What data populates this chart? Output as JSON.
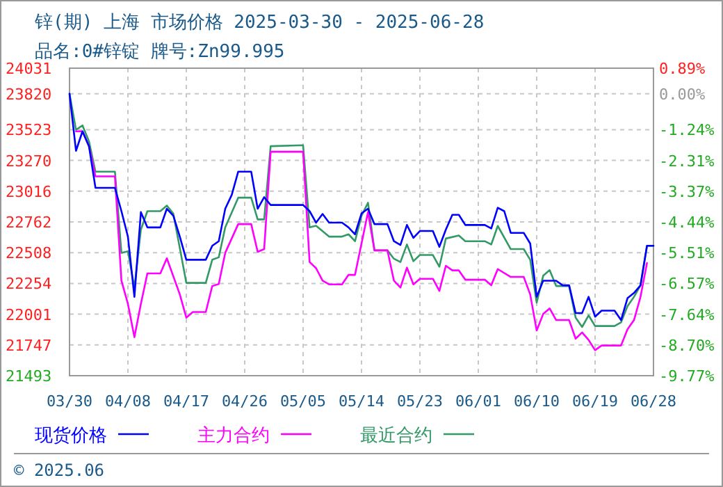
{
  "chart_data": {
    "type": "line",
    "title": "锌(期) 上海 市场价格 2025-03-30 - 2025-06-28",
    "subtitle": "品名:0#锌锭 牌号:Zn99.995",
    "annotations": [
      "© 2025.06"
    ],
    "legend": "bottom",
    "grid": true,
    "marker": "none",
    "line_style": "solid",
    "xlim": [
      "--03-30",
      "--06-28"
    ],
    "xticks": [
      {
        "value": "--03-30",
        "label": "03/30"
      },
      {
        "value": "--04-08",
        "label": "04/08"
      },
      {
        "value": "--04-17",
        "label": "04/17"
      },
      {
        "value": "--04-26",
        "label": "04/26"
      },
      {
        "value": "--05-05",
        "label": "05/05"
      },
      {
        "value": "--05-14",
        "label": "05/14"
      },
      {
        "value": "--05-23",
        "label": "05/23"
      },
      {
        "value": "--06-01",
        "label": "06/01"
      },
      {
        "value": "--06-10",
        "label": "06/10"
      },
      {
        "value": "--06-19",
        "label": "06/19"
      },
      {
        "value": "--06-28",
        "label": "06/28"
      }
    ],
    "ylim": [
      21493,
      24031
    ],
    "yticks": [
      24031,
      23820,
      23523,
      23270,
      23016,
      22762,
      22508,
      22254,
      22001,
      21747,
      21493
    ],
    "y2lim": [
      -9.77,
      0.89
    ],
    "y2ticks": [
      {
        "value": 0.89,
        "label": "0.89%"
      },
      {
        "value": 0,
        "label": "0.00%"
      },
      {
        "value": -1.24,
        "label": "-1.24%"
      },
      {
        "value": -2.31,
        "label": "-2.31%"
      },
      {
        "value": -3.37,
        "label": "-3.37%"
      },
      {
        "value": -4.44,
        "label": "-4.44%"
      },
      {
        "value": -5.51,
        "label": "-5.51%"
      },
      {
        "value": -6.57,
        "label": "-6.57%"
      },
      {
        "value": -7.64,
        "label": "-7.64%"
      },
      {
        "value": -8.7,
        "label": "-8.70%"
      },
      {
        "value": -9.77,
        "label": "-9.77%"
      }
    ],
    "series": [
      {
        "name": "现货价格",
        "color": "#0000ff",
        "x": [
          "--03-30",
          "--03-31",
          "--04-01",
          "--04-02",
          "--04-03",
          "--04-06",
          "--04-07",
          "--04-08",
          "--04-09",
          "--04-10",
          "--04-11",
          "--04-13",
          "--04-14",
          "--04-15",
          "--04-16",
          "--04-17",
          "--04-20",
          "--04-21",
          "--04-22",
          "--04-23",
          "--04-24",
          "--04-25",
          "--04-27",
          "--04-28",
          "--04-29",
          "--04-30",
          "--05-05",
          "--05-06",
          "--05-07",
          "--05-08",
          "--05-09",
          "--05-11",
          "--05-12",
          "--05-13",
          "--05-14",
          "--05-15",
          "--05-16",
          "--05-18",
          "--05-19",
          "--05-20",
          "--05-21",
          "--05-22",
          "--05-23",
          "--05-25",
          "--05-26",
          "--05-27",
          "--05-28",
          "--05-29",
          "--05-30",
          "--06-02",
          "--06-03",
          "--06-04",
          "--06-05",
          "--06-06",
          "--06-08",
          "--06-09",
          "--06-10",
          "--06-11",
          "--06-13",
          "--06-14",
          "--06-15",
          "--06-16",
          "--06-17",
          "--06-18",
          "--06-19",
          "--06-20",
          "--06-22",
          "--06-23",
          "--06-24",
          "--06-25",
          "--06-26",
          "--06-27",
          "--06-28"
        ],
        "values": [
          23820,
          23349,
          23510,
          23387,
          23043,
          23043,
          22851,
          22641,
          22144,
          22843,
          22717,
          22717,
          22871,
          22813,
          22641,
          22450,
          22450,
          22565,
          22603,
          22871,
          22985,
          23177,
          23177,
          22871,
          22966,
          22902,
          22902,
          22851,
          22756,
          22828,
          22756,
          22756,
          22717,
          22660,
          22832,
          22871,
          22744,
          22744,
          22603,
          22572,
          22737,
          22630,
          22687,
          22687,
          22557,
          22699,
          22821,
          22821,
          22737,
          22737,
          22708,
          22879,
          22851,
          22672,
          22672,
          22584,
          22144,
          22277,
          22277,
          22239,
          22239,
          22010,
          22010,
          22144,
          21980,
          22030,
          22030,
          21952,
          22133,
          22176,
          22239,
          22565,
          22565
        ]
      },
      {
        "name": "主力合约",
        "color": "#ff00ff",
        "x": [
          "--03-31",
          "--04-01",
          "--04-02",
          "--04-03",
          "--04-06",
          "--04-07",
          "--04-08",
          "--04-09",
          "--04-10",
          "--04-11",
          "--04-13",
          "--04-14",
          "--04-16",
          "--04-17",
          "--04-18",
          "--04-20",
          "--04-21",
          "--04-22",
          "--04-23",
          "--04-25",
          "--04-27",
          "--04-28",
          "--04-29",
          "--04-30",
          "--05-05",
          "--05-06",
          "--05-07",
          "--05-08",
          "--05-09",
          "--05-11",
          "--05-12",
          "--05-13",
          "--05-14",
          "--05-15",
          "--05-16",
          "--05-18",
          "--05-19",
          "--05-20",
          "--05-21",
          "--05-22",
          "--05-23",
          "--05-25",
          "--05-26",
          "--05-27",
          "--05-28",
          "--05-29",
          "--05-30",
          "--06-02",
          "--06-03",
          "--06-04",
          "--06-06",
          "--06-08",
          "--06-09",
          "--06-10",
          "--06-11",
          "--06-12",
          "--06-13",
          "--06-15",
          "--06-16",
          "--06-17",
          "--06-18",
          "--06-19",
          "--06-20",
          "--06-23",
          "--06-24",
          "--06-25",
          "--06-26",
          "--06-27"
        ],
        "values": [
          23510,
          23510,
          23387,
          23138,
          23138,
          22277,
          22086,
          21811,
          22086,
          22337,
          22337,
          22462,
          22164,
          21972,
          22018,
          22018,
          22233,
          22250,
          22507,
          22744,
          22744,
          22515,
          22538,
          23341,
          23341,
          22431,
          22380,
          22277,
          22247,
          22247,
          22325,
          22325,
          22584,
          22843,
          22527,
          22527,
          22277,
          22220,
          22385,
          22247,
          22293,
          22293,
          22193,
          22400,
          22362,
          22362,
          22285,
          22285,
          22239,
          22373,
          22308,
          22308,
          22164,
          21866,
          22002,
          22048,
          21952,
          21952,
          21799,
          21850,
          21788,
          21703,
          21742,
          21742,
          21876,
          21952,
          22144,
          22423
        ]
      },
      {
        "name": "最近合约",
        "color": "#339966",
        "x": [
          "--03-30",
          "--03-31",
          "--04-01",
          "--04-02",
          "--04-03",
          "--04-06",
          "--04-07",
          "--04-08",
          "--04-09",
          "--04-10",
          "--04-11",
          "--04-13",
          "--04-14",
          "--04-15",
          "--04-16",
          "--04-17",
          "--04-20",
          "--04-21",
          "--04-22",
          "--04-23",
          "--04-25",
          "--04-27",
          "--04-28",
          "--04-29",
          "--04-30",
          "--05-05",
          "--05-06",
          "--05-07",
          "--05-09",
          "--05-11",
          "--05-12",
          "--05-13",
          "--05-14",
          "--05-15",
          "--05-16",
          "--05-18",
          "--05-19",
          "--05-20",
          "--05-21",
          "--05-22",
          "--05-23",
          "--05-25",
          "--05-26",
          "--05-27",
          "--05-29",
          "--05-30",
          "--06-02",
          "--06-03",
          "--06-04",
          "--06-06",
          "--06-08",
          "--06-09",
          "--06-10",
          "--06-11",
          "--06-12",
          "--06-13",
          "--06-15",
          "--06-16",
          "--06-17",
          "--06-18",
          "--06-19",
          "--06-22",
          "--06-23",
          "--06-24",
          "--06-25",
          "--06-26",
          "--06-27",
          "--06-28"
        ],
        "values": [
          23820,
          23522,
          23559,
          23427,
          23177,
          23177,
          22507,
          22520,
          22220,
          22699,
          22851,
          22851,
          22897,
          22830,
          22546,
          22259,
          22259,
          22450,
          22470,
          22717,
          22962,
          22962,
          22783,
          22783,
          23387,
          23395,
          22717,
          22730,
          22641,
          22641,
          22660,
          22603,
          22813,
          22920,
          22527,
          22527,
          22458,
          22431,
          22576,
          22438,
          22489,
          22489,
          22392,
          22625,
          22650,
          22603,
          22603,
          22576,
          22729,
          22538,
          22538,
          22450,
          22096,
          22318,
          22364,
          22233,
          22233,
          21972,
          21895,
          21991,
          21903,
          21903,
          21933,
          22067,
          22144,
          22239,
          22565,
          22565
        ]
      }
    ]
  }
}
